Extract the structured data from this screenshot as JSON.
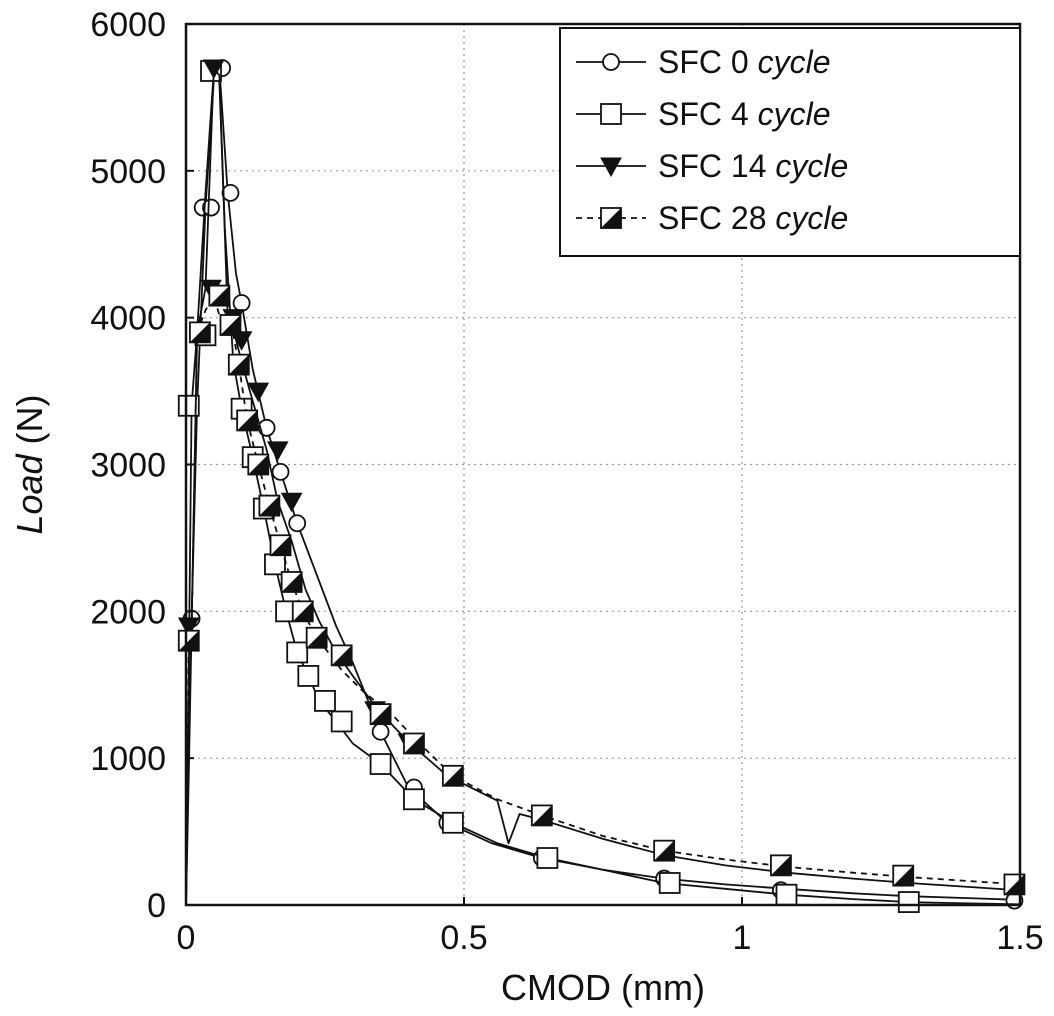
{
  "chart_data": {
    "type": "line",
    "title": "",
    "xlabel": "CMOD (mm)",
    "ylabel_italic": "Load",
    "ylabel_unit": " (N)",
    "xlim": [
      0,
      1.5
    ],
    "ylim": [
      0,
      6000
    ],
    "xticks": [
      0,
      0.5,
      1,
      1.5
    ],
    "xtick_labels": [
      "0",
      "0.5",
      "1",
      "1.5"
    ],
    "yticks": [
      0,
      1000,
      2000,
      3000,
      4000,
      5000,
      6000
    ],
    "ytick_labels": [
      "0",
      "1000",
      "2000",
      "3000",
      "4000",
      "5000",
      "6000"
    ],
    "grid": true,
    "legend_position": "top-right",
    "series": [
      {
        "name": "SFC 0",
        "name_italic": "cycle",
        "marker": "circle",
        "line": "solid",
        "x": [
          0,
          0.005,
          0.01,
          0.02,
          0.035,
          0.05,
          0.06,
          0.075,
          0.09,
          0.1,
          0.12,
          0.145,
          0.17,
          0.2,
          0.23,
          0.27,
          0.3,
          0.35,
          0.4,
          0.47,
          0.55,
          0.64,
          0.75,
          0.86,
          0.97,
          1.08,
          1.2,
          1.3,
          1.42,
          1.5
        ],
        "y": [
          0,
          1200,
          1950,
          3400,
          4750,
          5620,
          5700,
          4850,
          4300,
          4100,
          3650,
          3250,
          2950,
          2600,
          2300,
          1900,
          1650,
          1180,
          800,
          560,
          420,
          320,
          240,
          180,
          140,
          110,
          80,
          60,
          45,
          35
        ],
        "marker_x": [
          0.01,
          0.03,
          0.045,
          0.065,
          0.08,
          0.1,
          0.145,
          0.17,
          0.2,
          0.35,
          0.41,
          0.47,
          0.64,
          0.86,
          1.07,
          1.49
        ],
        "marker_y": [
          1950,
          4750,
          4750,
          5700,
          4850,
          4100,
          3250,
          2950,
          2600,
          1180,
          800,
          560,
          320,
          180,
          100,
          30
        ]
      },
      {
        "name": "SFC 4",
        "name_italic": "cycle",
        "marker": "square",
        "line": "solid",
        "x": [
          0,
          0.005,
          0.01,
          0.02,
          0.035,
          0.05,
          0.06,
          0.07,
          0.085,
          0.1,
          0.12,
          0.14,
          0.16,
          0.18,
          0.2,
          0.22,
          0.24,
          0.27,
          0.3,
          0.35,
          0.41,
          0.48,
          0.56,
          0.65,
          0.75,
          0.86,
          0.97,
          1.08,
          1.2,
          1.3,
          1.42,
          1.5
        ],
        "y": [
          0,
          1600,
          3400,
          3900,
          4850,
          5680,
          5600,
          4600,
          3700,
          3380,
          3050,
          2700,
          2320,
          2000,
          1720,
          1560,
          1390,
          1250,
          1100,
          960,
          720,
          560,
          420,
          320,
          240,
          150,
          110,
          70,
          40,
          20,
          10,
          5
        ],
        "marker_x": [
          0.005,
          0.035,
          0.045,
          0.1,
          0.12,
          0.14,
          0.16,
          0.18,
          0.2,
          0.22,
          0.25,
          0.28,
          0.35,
          0.41,
          0.48,
          0.65,
          0.87,
          1.08,
          1.3
        ],
        "marker_y": [
          3400,
          3880,
          5680,
          3380,
          3050,
          2700,
          2320,
          2000,
          1720,
          1560,
          1390,
          1250,
          960,
          720,
          560,
          320,
          150,
          70,
          20
        ]
      },
      {
        "name": "SFC 14",
        "name_italic": "cycle",
        "marker": "triangle-down",
        "line": "solid",
        "x": [
          0,
          0.005,
          0.01,
          0.02,
          0.035,
          0.05,
          0.06,
          0.075,
          0.09,
          0.1,
          0.115,
          0.13,
          0.145,
          0.165,
          0.19,
          0.215,
          0.24,
          0.27,
          0.3,
          0.345,
          0.4,
          0.47,
          0.56,
          0.58,
          0.6,
          0.64,
          0.75,
          0.86,
          0.97,
          1.08,
          1.2,
          1.3,
          1.42,
          1.5
        ],
        "y": [
          0,
          900,
          1900,
          3900,
          4200,
          5700,
          5650,
          4000,
          3850,
          3700,
          3500,
          3300,
          3100,
          2750,
          2480,
          2150,
          1930,
          1720,
          1560,
          1330,
          1110,
          880,
          710,
          420,
          620,
          580,
          450,
          340,
          270,
          220,
          180,
          150,
          120,
          100
        ],
        "marker_x": [
          0.005,
          0.045,
          0.05,
          0.085,
          0.1,
          0.13,
          0.165,
          0.19,
          0.34,
          0.4
        ],
        "marker_y": [
          1900,
          4200,
          5700,
          4000,
          3850,
          3500,
          3100,
          2750,
          1330,
          1110
        ]
      },
      {
        "name": "SFC 28",
        "name_italic": "cycle",
        "marker": "half-square",
        "line": "dashed",
        "x": [
          0,
          0.005,
          0.01,
          0.02,
          0.035,
          0.05,
          0.065,
          0.08,
          0.095,
          0.11,
          0.13,
          0.15,
          0.17,
          0.19,
          0.21,
          0.235,
          0.26,
          0.28,
          0.32,
          0.37,
          0.42,
          0.48,
          0.56,
          0.64,
          0.75,
          0.86,
          0.97,
          1.08,
          1.2,
          1.3,
          1.42,
          1.5
        ],
        "y": [
          0,
          1800,
          1850,
          3900,
          4050,
          4150,
          3950,
          4000,
          3680,
          3300,
          3000,
          2720,
          2450,
          2200,
          2000,
          1820,
          1700,
          1600,
          1450,
          1300,
          1100,
          880,
          720,
          610,
          470,
          370,
          310,
          260,
          220,
          190,
          160,
          140
        ],
        "marker_x": [
          0.005,
          0.025,
          0.06,
          0.08,
          0.095,
          0.11,
          0.13,
          0.15,
          0.17,
          0.19,
          0.21,
          0.235,
          0.28,
          0.35,
          0.41,
          0.48,
          0.64,
          0.86,
          1.07,
          1.29,
          1.49
        ],
        "marker_y": [
          1800,
          3900,
          4150,
          3950,
          3680,
          3300,
          3000,
          2720,
          2450,
          2200,
          2000,
          1820,
          1700,
          1300,
          1100,
          880,
          610,
          370,
          270,
          200,
          140
        ]
      }
    ]
  }
}
